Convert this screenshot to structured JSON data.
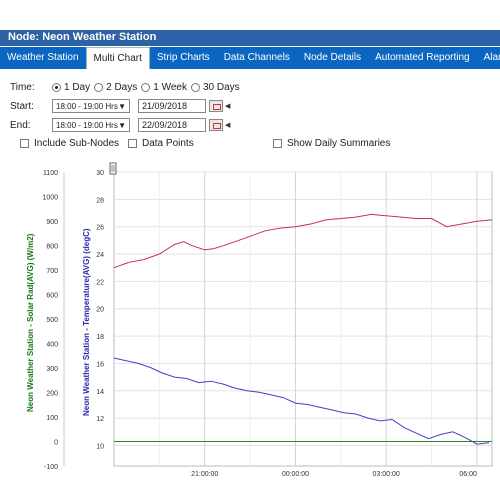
{
  "window": {
    "title": "Node: Neon Weather Station"
  },
  "tabs": [
    {
      "label": "Weather Station",
      "active": false
    },
    {
      "label": "Multi Chart",
      "active": true
    },
    {
      "label": "Strip Charts",
      "active": false
    },
    {
      "label": "Data Channels",
      "active": false
    },
    {
      "label": "Node Details",
      "active": false
    },
    {
      "label": "Automated Reporting",
      "active": false
    },
    {
      "label": "Alarms",
      "active": false
    }
  ],
  "form": {
    "time_label": "Time:",
    "time_options": [
      "1  Day",
      "2 Days",
      "1 Week",
      "30 Days"
    ],
    "time_selected": "1  Day",
    "start_label": "Start:",
    "start_hours": "18:00 - 19:00 Hrs",
    "start_date": "21/09/2018",
    "end_label": "End:",
    "end_hours": "18:00 - 19:00 Hrs",
    "end_date": "22/09/2018",
    "include_subnodes": "Include Sub-Nodes",
    "data_points": "Data Points",
    "show_daily": "Show Daily Summaries"
  },
  "chart_data": {
    "type": "line",
    "x_tick_labels": [
      "21:00:00",
      "00:00:00",
      "03:00:00",
      "06:00"
    ],
    "x_tick_hours": [
      3,
      6,
      9,
      12
    ],
    "x_range_hours": [
      0,
      12.5
    ],
    "y_left": {
      "label": "Neon Weather Station - Solar Rad(AVG) (W/m2)",
      "ticks": [
        -100,
        0,
        100,
        200,
        300,
        400,
        500,
        600,
        700,
        800,
        900,
        1000,
        1100
      ],
      "range": [
        -100,
        1100
      ],
      "color": "#1a7a1a"
    },
    "y_right": {
      "label": "Neon Weather Station - Temperature(AVG) (degC)",
      "ticks": [
        10,
        12,
        14,
        16,
        18,
        20,
        22,
        24,
        26,
        28,
        30
      ],
      "range": [
        8.5,
        30
      ],
      "color": "#2b2bb0"
    },
    "grid": true,
    "series": [
      {
        "axis": "right",
        "color": "#c8334a",
        "x": [
          0,
          0.5,
          1,
          1.5,
          2,
          2.3,
          2.6,
          3,
          3.3,
          3.6,
          4,
          4.5,
          5,
          5.5,
          6,
          6.5,
          7,
          7.5,
          8,
          8.5,
          9,
          9.5,
          10,
          10.5,
          11,
          11.5,
          12,
          12.5
        ],
        "values": [
          23.0,
          23.4,
          23.6,
          24.0,
          24.7,
          24.9,
          24.6,
          24.3,
          24.4,
          24.6,
          24.9,
          25.3,
          25.7,
          25.9,
          26.0,
          26.2,
          26.5,
          26.6,
          26.7,
          26.9,
          26.8,
          26.7,
          26.6,
          26.6,
          26.0,
          26.2,
          26.4,
          26.5
        ]
      },
      {
        "axis": "right",
        "color": "#4040c8",
        "x": [
          0,
          0.4,
          0.8,
          1.2,
          1.6,
          2,
          2.4,
          2.8,
          3.2,
          3.6,
          4,
          4.4,
          4.8,
          5.2,
          5.6,
          6,
          6.4,
          6.8,
          7.2,
          7.6,
          8,
          8.4,
          8.8,
          9.2,
          9.6,
          10,
          10.4,
          10.8,
          11.2,
          11.6,
          12,
          12.4
        ],
        "values": [
          16.4,
          16.2,
          16.0,
          15.7,
          15.3,
          15.0,
          14.9,
          14.6,
          14.7,
          14.5,
          14.2,
          14.0,
          13.9,
          13.7,
          13.5,
          13.1,
          13.0,
          12.8,
          12.6,
          12.4,
          12.3,
          12.0,
          11.8,
          11.9,
          11.3,
          10.9,
          10.5,
          10.8,
          11.0,
          10.6,
          10.1,
          10.2
        ]
      },
      {
        "axis": "left",
        "color": "#2a8a2a",
        "x": [
          0,
          12.5
        ],
        "values": [
          0,
          0
        ]
      }
    ]
  }
}
